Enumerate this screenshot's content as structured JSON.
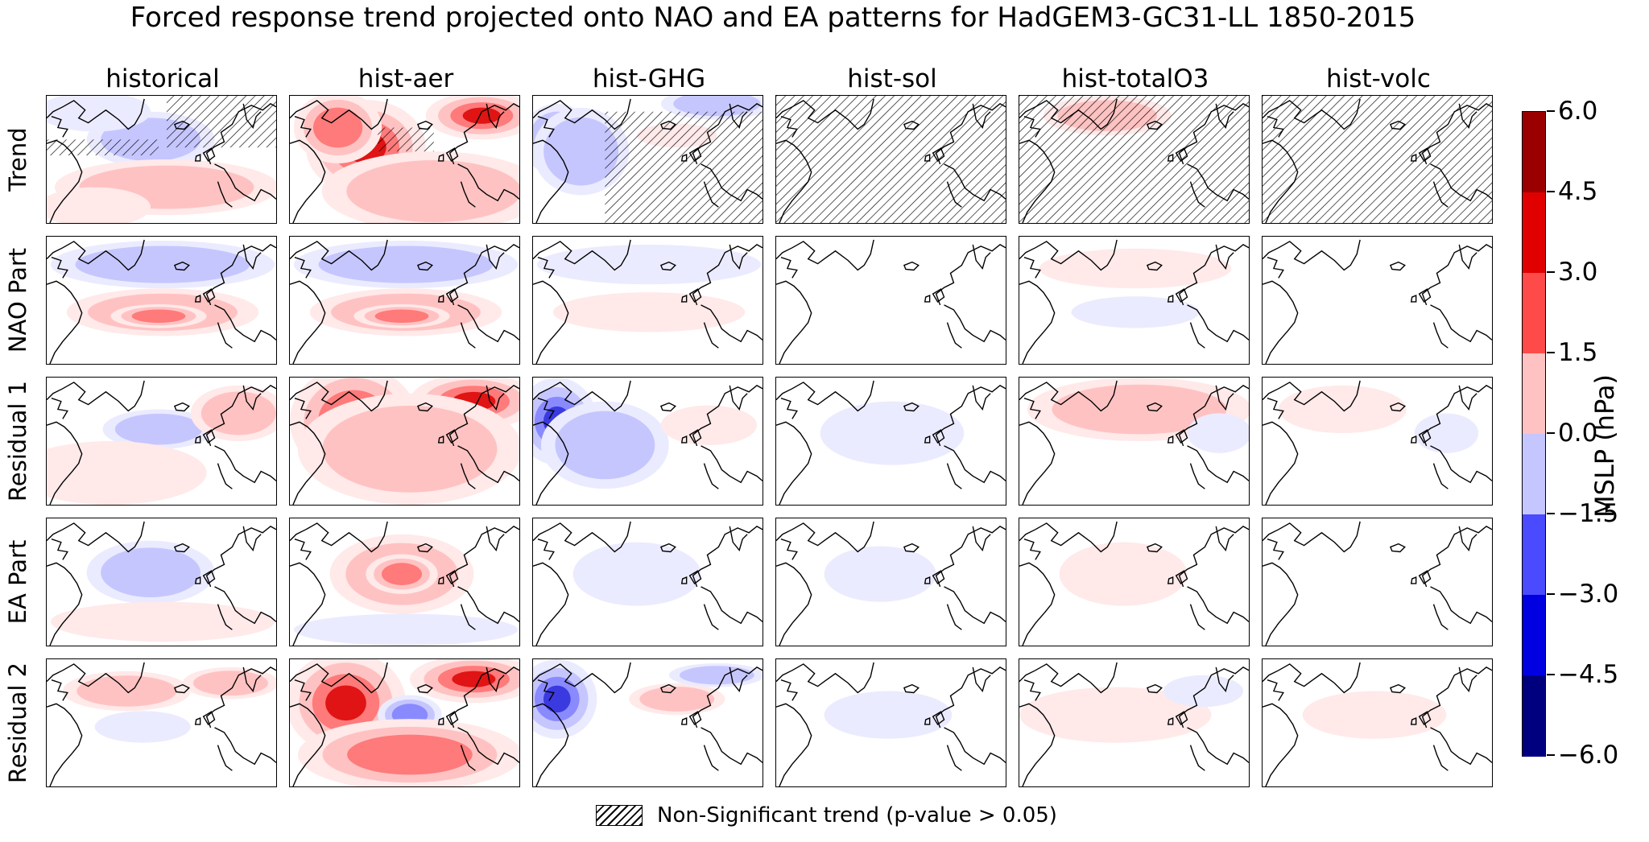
{
  "title": "Forced response trend projected onto NAO and EA patterns for HadGEM3-GC31-LL 1850-2015",
  "columns": [
    "historical",
    "hist-aer",
    "hist-GHG",
    "hist-sol",
    "hist-totalO3",
    "hist-volc"
  ],
  "rows": [
    "Trend",
    "NAO Part",
    "Residual 1",
    "EA Part",
    "Residual 2"
  ],
  "colorbar": {
    "label": "MSLP (hPa)",
    "ticks": [
      "6.0",
      "4.5",
      "3.0",
      "1.5",
      "0.0",
      "−1.5",
      "−3.0",
      "−4.5",
      "−6.0"
    ],
    "levels": [
      6.0,
      4.5,
      3.0,
      1.5,
      0.0,
      -1.5,
      -3.0,
      -4.5,
      -6.0
    ],
    "colors": [
      "#9b0000",
      "#e00000",
      "#ff4a4a",
      "#ffc2c2",
      "#c6c6ff",
      "#4a4aff",
      "#0000e0",
      "#00007f"
    ]
  },
  "legend": {
    "label": "Non-Significant trend (p-value > 0.05)"
  }
}
